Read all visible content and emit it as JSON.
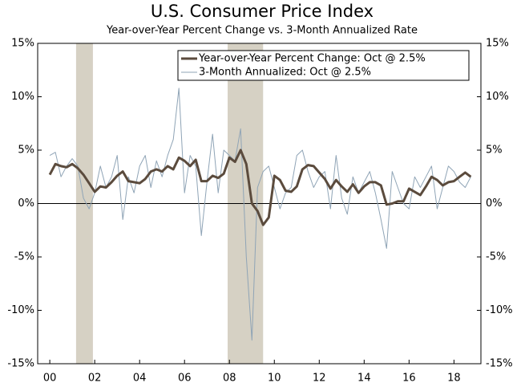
{
  "chart_data": {
    "type": "line",
    "title": "U.S. Consumer Price Index",
    "subtitle": "Year-over-Year Percent Change vs. 3-Month Annualized Rate",
    "x": [
      2000,
      2000.25,
      2000.5,
      2000.75,
      2001,
      2001.25,
      2001.5,
      2001.75,
      2002,
      2002.25,
      2002.5,
      2002.75,
      2003,
      2003.25,
      2003.5,
      2003.75,
      2004,
      2004.25,
      2004.5,
      2004.75,
      2005,
      2005.25,
      2005.5,
      2005.75,
      2006,
      2006.25,
      2006.5,
      2006.75,
      2007,
      2007.25,
      2007.5,
      2007.75,
      2008,
      2008.25,
      2008.5,
      2008.75,
      2009,
      2009.25,
      2009.5,
      2009.75,
      2010,
      2010.25,
      2010.5,
      2010.75,
      2011,
      2011.25,
      2011.5,
      2011.75,
      2012,
      2012.25,
      2012.5,
      2012.75,
      2013,
      2013.25,
      2013.5,
      2013.75,
      2014,
      2014.25,
      2014.5,
      2014.75,
      2015,
      2015.25,
      2015.5,
      2015.75,
      2016,
      2016.25,
      2016.5,
      2016.75,
      2017,
      2017.25,
      2017.5,
      2017.75,
      2018,
      2018.25,
      2018.5,
      2018.75
    ],
    "series": [
      {
        "name": "Year-over-Year Percent Change: Oct @ 2.5%",
        "color": "#5b4b3d",
        "width": 3,
        "values": [
          2.7,
          3.7,
          3.5,
          3.4,
          3.7,
          3.3,
          2.7,
          1.9,
          1.1,
          1.6,
          1.5,
          2.0,
          2.6,
          3.0,
          2.1,
          2.0,
          1.9,
          2.3,
          3.0,
          3.2,
          3.0,
          3.5,
          3.2,
          4.3,
          4.0,
          3.5,
          4.1,
          2.1,
          2.1,
          2.6,
          2.4,
          2.8,
          4.3,
          3.9,
          5.0,
          3.7,
          0.0,
          -0.7,
          -2.0,
          -1.3,
          2.6,
          2.2,
          1.2,
          1.1,
          1.6,
          3.2,
          3.6,
          3.5,
          2.9,
          2.3,
          1.4,
          2.2,
          1.6,
          1.1,
          1.8,
          1.0,
          1.6,
          2.0,
          2.0,
          1.7,
          -0.1,
          0.0,
          0.2,
          0.2,
          1.4,
          1.1,
          0.8,
          1.6,
          2.5,
          2.2,
          1.7,
          2.0,
          2.1,
          2.5,
          2.9,
          2.5
        ]
      },
      {
        "name": "3-Month Annualized: Oct @ 2.5%",
        "color": "#8fa4b6",
        "width": 1,
        "values": [
          4.5,
          4.8,
          2.5,
          3.5,
          4.2,
          3.5,
          0.5,
          -0.5,
          1.0,
          3.5,
          1.5,
          2.5,
          4.5,
          -1.5,
          2.5,
          1.0,
          3.5,
          4.5,
          1.5,
          4.0,
          2.5,
          4.5,
          6.0,
          10.8,
          1.0,
          4.5,
          3.5,
          -3.0,
          2.0,
          6.5,
          1.0,
          5.0,
          4.5,
          4.0,
          7.0,
          -5.0,
          -12.8,
          1.5,
          3.0,
          3.5,
          1.5,
          -0.5,
          1.0,
          1.5,
          4.5,
          5.0,
          3.0,
          1.5,
          2.5,
          3.0,
          -0.5,
          4.5,
          0.5,
          -1.0,
          2.5,
          1.0,
          2.0,
          3.0,
          1.0,
          -1.5,
          -4.2,
          3.0,
          1.5,
          0.0,
          -0.5,
          2.5,
          1.5,
          2.5,
          3.5,
          -0.5,
          1.5,
          3.5,
          3.0,
          2.0,
          1.5,
          2.5
        ]
      }
    ],
    "shaded_periods": [
      [
        2001.17,
        2001.92
      ],
      [
        2007.92,
        2009.5
      ]
    ],
    "shade_color": "#d6d1c4",
    "xlim": [
      1999.46,
      2019.2
    ],
    "xticks": [
      {
        "value": 2000,
        "label": "00"
      },
      {
        "value": 2002,
        "label": "02"
      },
      {
        "value": 2004,
        "label": "04"
      },
      {
        "value": 2006,
        "label": "06"
      },
      {
        "value": 2008,
        "label": "08"
      },
      {
        "value": 2010,
        "label": "10"
      },
      {
        "value": 2012,
        "label": "12"
      },
      {
        "value": 2014,
        "label": "14"
      },
      {
        "value": 2016,
        "label": "16"
      },
      {
        "value": 2018,
        "label": "18"
      }
    ],
    "ylim": [
      -15,
      15
    ],
    "yticks": [
      {
        "value": -15,
        "label": "-15%"
      },
      {
        "value": -10,
        "label": "-10%"
      },
      {
        "value": -5,
        "label": "-5%"
      },
      {
        "value": 0,
        "label": "0%"
      },
      {
        "value": 5,
        "label": "5%"
      },
      {
        "value": 10,
        "label": "10%"
      },
      {
        "value": 15,
        "label": "15%"
      }
    ],
    "y2lim": [
      -15,
      15
    ],
    "y2ticks": [
      {
        "value": -15,
        "label": "-15%"
      },
      {
        "value": -10,
        "label": "-10%"
      },
      {
        "value": -5,
        "label": "-5%"
      },
      {
        "value": 0,
        "label": "0%"
      },
      {
        "value": 5,
        "label": "5%"
      },
      {
        "value": 10,
        "label": "10%"
      },
      {
        "value": 15,
        "label": "15%"
      }
    ],
    "legend": "top-right"
  }
}
